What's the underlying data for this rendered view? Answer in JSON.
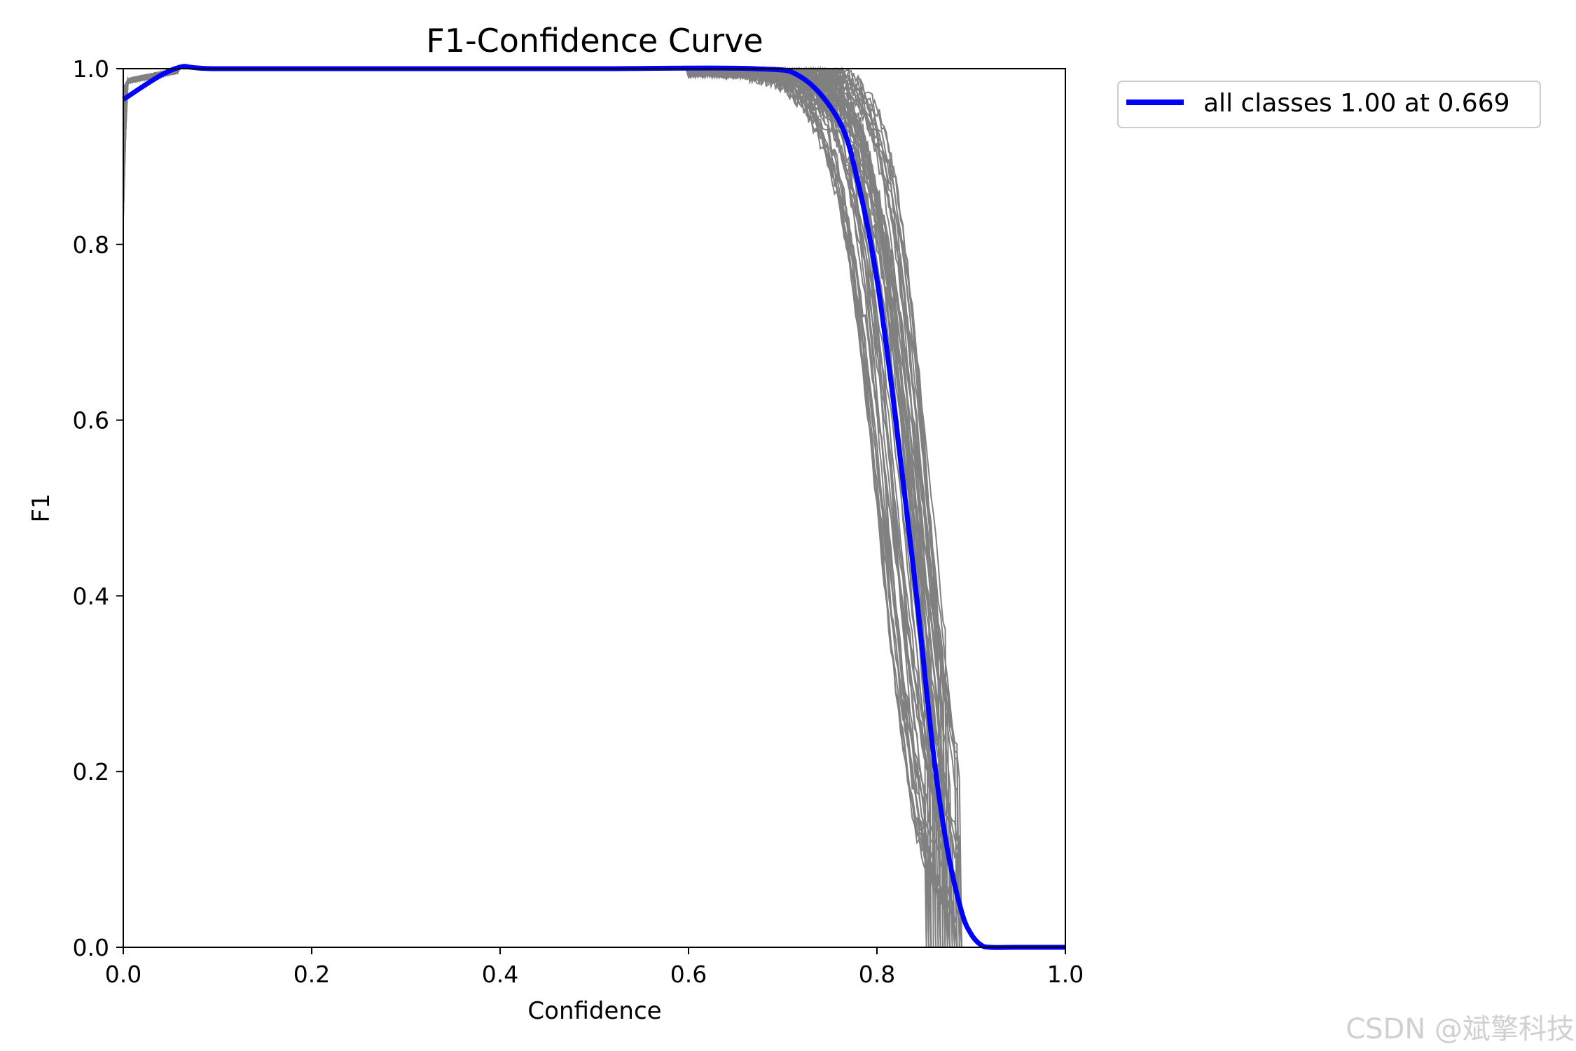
{
  "chart_data": {
    "type": "line",
    "title": "F1-Confidence Curve",
    "xlabel": "Confidence",
    "ylabel": "F1",
    "xlim": [
      0.0,
      1.0
    ],
    "ylim": [
      0.0,
      1.0
    ],
    "xticks": [
      "0.0",
      "0.2",
      "0.4",
      "0.6",
      "0.8",
      "1.0"
    ],
    "yticks": [
      "0.0",
      "0.2",
      "0.4",
      "0.6",
      "0.8",
      "1.0"
    ],
    "grid": false,
    "legend_position": "outside-top-right",
    "class_curves": {
      "color": "#808080",
      "count": 60,
      "drop_center_range": [
        0.8,
        0.86
      ],
      "reaches_zero_range": [
        0.85,
        0.89
      ]
    },
    "series": [
      {
        "name": "all classes 1.00 at 0.669",
        "color": "#0000ff",
        "x": [
          0.0,
          0.055,
          0.1,
          0.3,
          0.5,
          0.669,
          0.72,
          0.76,
          0.78,
          0.8,
          0.82,
          0.84,
          0.86,
          0.875,
          0.89,
          0.9,
          0.91,
          0.92,
          0.95,
          1.0
        ],
        "y": [
          0.965,
          1.0,
          1.0,
          1.0,
          1.0,
          1.0,
          0.99,
          0.94,
          0.87,
          0.76,
          0.6,
          0.42,
          0.22,
          0.11,
          0.04,
          0.015,
          0.003,
          0.0,
          0.0,
          0.0
        ]
      }
    ]
  },
  "watermark": "CSDN @斌擎科技"
}
